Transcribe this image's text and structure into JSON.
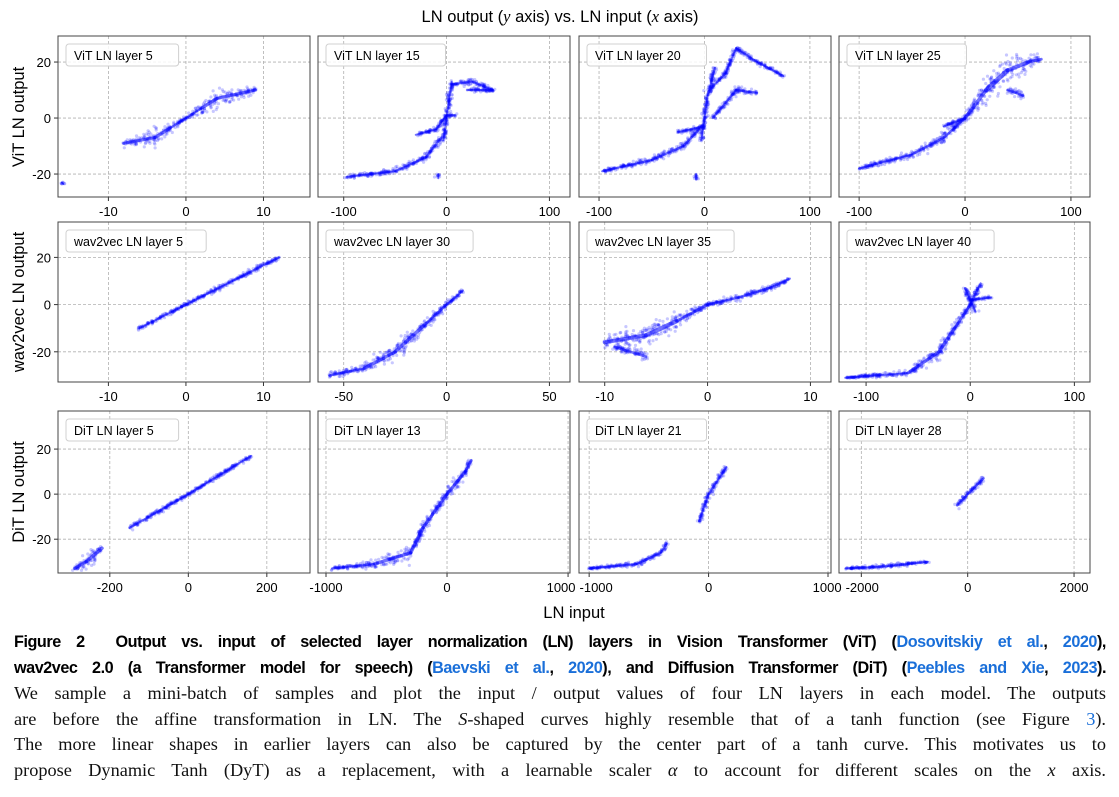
{
  "figure": {
    "title_parts": [
      "LN output (",
      "y",
      " axis) vs. LN input (",
      "x",
      " axis)"
    ],
    "xlabel": "LN input",
    "row_ylabels": [
      "ViT LN output",
      "wav2vec LN output",
      "DiT LN output"
    ]
  },
  "colors": {
    "points": "#0000ff",
    "grid": "#b0b0b0",
    "link": "#1a6fd9"
  },
  "chart_data": {
    "type": "scatter",
    "grid": true,
    "legend_placement": "top-left",
    "panels": [
      {
        "label": "ViT LN layer 5",
        "row": 0,
        "col": 0,
        "xlim": [
          -16.5,
          16
        ],
        "ylim": [
          -28.2,
          29.3
        ],
        "xticks": [
          -10,
          0,
          10
        ],
        "yticks": [
          -20,
          0,
          20
        ],
        "strokes": [
          [
            [
              -8,
              -9,
              1
            ],
            [
              -4,
              -7,
              3
            ],
            [
              -2,
              -3.5,
              1.5
            ],
            [
              0,
              0,
              0.2
            ],
            [
              2,
              3.5,
              1.5
            ],
            [
              4,
              7,
              3
            ],
            [
              9,
              10,
              1
            ]
          ],
          [
            [
              -16,
              -23,
              0.4
            ],
            [
              -15.8,
              -23.6,
              0.4
            ]
          ]
        ]
      },
      {
        "label": "ViT LN layer 15",
        "row": 0,
        "col": 1,
        "xlim": [
          -125,
          120
        ],
        "ylim": [
          -28.2,
          29.3
        ],
        "xticks": [
          -100,
          0,
          100
        ],
        "yticks": [
          -20,
          0,
          20
        ],
        "strokes": [
          [
            [
              -97,
              -21,
              0.5
            ],
            [
              -50,
              -19,
              0.8
            ],
            [
              -20,
              -14,
              1
            ],
            [
              -5,
              -7,
              1
            ]
          ],
          [
            [
              -3,
              -8,
              0.5
            ],
            [
              0,
              0,
              0.5
            ],
            [
              5,
              13,
              0.5
            ]
          ],
          [
            [
              -30,
              -6,
              0.5
            ],
            [
              -10,
              -4,
              0.5
            ],
            [
              0,
              1,
              0.5
            ],
            [
              8,
              1,
              0.5
            ]
          ],
          [
            [
              5,
              12,
              0.5
            ],
            [
              25,
              13,
              1
            ],
            [
              45,
              10,
              0.5
            ],
            [
              20,
              10,
              0.7
            ]
          ],
          [
            [
              -8,
              -20,
              0.5
            ],
            [
              -8,
              -21.5,
              0.5
            ]
          ]
        ]
      },
      {
        "label": "ViT LN layer 20",
        "row": 0,
        "col": 2,
        "xlim": [
          -119,
          120
        ],
        "ylim": [
          -28.2,
          29.3
        ],
        "xticks": [
          -100,
          0,
          100
        ],
        "yticks": [
          -20,
          0,
          20
        ],
        "strokes": [
          [
            [
              -97,
              -19,
              0.5
            ],
            [
              -50,
              -15,
              1
            ],
            [
              -20,
              -10,
              1
            ],
            [
              -5,
              -4,
              1
            ]
          ],
          [
            [
              -3,
              -8,
              0.5
            ],
            [
              3,
              8,
              0.5
            ],
            [
              10,
              18,
              0.5
            ]
          ],
          [
            [
              -25,
              -5,
              0.5
            ],
            [
              0,
              -3,
              0.5
            ]
          ],
          [
            [
              5,
              10,
              1
            ],
            [
              20,
              16,
              0.5
            ],
            [
              30,
              25,
              0.5
            ],
            [
              50,
              20,
              0.5
            ],
            [
              75,
              15,
              0.5
            ]
          ],
          [
            [
              8,
              0,
              0.5
            ],
            [
              30,
              10,
              1
            ],
            [
              50,
              9,
              0.5
            ]
          ],
          [
            [
              -8,
              -20,
              0.5
            ],
            [
              -8,
              -22,
              0.5
            ]
          ]
        ]
      },
      {
        "label": "ViT LN layer 25",
        "row": 0,
        "col": 3,
        "xlim": [
          -119,
          118
        ],
        "ylim": [
          -28.2,
          29.3
        ],
        "xticks": [
          -100,
          0,
          100
        ],
        "yticks": [
          -20,
          0,
          20
        ],
        "strokes": [
          [
            [
              -100,
              -18,
              0.5
            ],
            [
              -50,
              -13,
              1
            ],
            [
              -20,
              -7,
              1.5
            ],
            [
              0,
              0,
              0.5
            ]
          ],
          [
            [
              -20,
              -3,
              0.5
            ],
            [
              0,
              0,
              1
            ]
          ],
          [
            [
              0,
              0,
              1
            ],
            [
              20,
              10,
              4
            ],
            [
              40,
              17,
              4
            ],
            [
              60,
              20,
              2
            ],
            [
              72,
              21,
              1.5
            ]
          ],
          [
            [
              40,
              10,
              1
            ],
            [
              55,
              8,
              1
            ]
          ]
        ]
      },
      {
        "label": "wav2vec LN layer 5",
        "row": 1,
        "col": 0,
        "xlim": [
          -16.5,
          16
        ],
        "ylim": [
          -32.8,
          35
        ],
        "xticks": [
          -10,
          0,
          10
        ],
        "yticks": [
          -20,
          0,
          20
        ],
        "strokes": [
          [
            [
              -6,
              -10,
              0.5
            ],
            [
              0,
              0,
              0.5
            ],
            [
              6,
              10,
              0.8
            ],
            [
              12,
              20,
              0.6
            ]
          ]
        ]
      },
      {
        "label": "wav2vec LN layer 30",
        "row": 1,
        "col": 1,
        "xlim": [
          -62.5,
          60
        ],
        "ylim": [
          -32.8,
          35
        ],
        "xticks": [
          -50,
          0,
          50
        ],
        "yticks": [
          -20,
          0,
          20
        ],
        "strokes": [
          [
            [
              -57,
              -30,
              0.8
            ],
            [
              -40,
              -27,
              1.5
            ],
            [
              -25,
              -20,
              3
            ],
            [
              -10,
              -8,
              2
            ],
            [
              0,
              0,
              0.5
            ],
            [
              8,
              6,
              0.8
            ]
          ]
        ]
      },
      {
        "label": "wav2vec LN layer 35",
        "row": 1,
        "col": 2,
        "xlim": [
          -12.5,
          12
        ],
        "ylim": [
          -32.8,
          35
        ],
        "xticks": [
          -10,
          0,
          10
        ],
        "yticks": [
          -20,
          0,
          20
        ],
        "strokes": [
          [
            [
              -10,
              -16,
              2
            ],
            [
              -6,
              -13,
              4
            ],
            [
              -3,
              -7,
              3
            ],
            [
              0,
              0,
              0.5
            ],
            [
              3,
              3,
              1.5
            ],
            [
              6,
              7,
              1
            ],
            [
              8,
              11,
              0.5
            ]
          ],
          [
            [
              -9,
              -18,
              1
            ],
            [
              -6,
              -22,
              2
            ]
          ]
        ]
      },
      {
        "label": "wav2vec LN layer 40",
        "row": 1,
        "col": 3,
        "xlim": [
          -126,
          115
        ],
        "ylim": [
          -32.8,
          35
        ],
        "xticks": [
          -100,
          0,
          100
        ],
        "yticks": [
          -20,
          0,
          20
        ],
        "strokes": [
          [
            [
              -120,
              -31,
              0.3
            ],
            [
              -60,
              -29,
              1
            ],
            [
              -30,
              -20,
              3
            ],
            [
              -15,
              -10,
              2
            ],
            [
              0,
              0,
              1
            ],
            [
              10,
              9,
              0.5
            ]
          ],
          [
            [
              -5,
              7,
              0.5
            ],
            [
              5,
              -3,
              0.5
            ]
          ],
          [
            [
              0,
              2,
              0.5
            ],
            [
              20,
              3,
              0.5
            ]
          ]
        ]
      },
      {
        "label": "DiT LN layer 5",
        "row": 2,
        "col": 0,
        "xlim": [
          -332,
          310
        ],
        "ylim": [
          -35,
          36.9
        ],
        "xticks": [
          -200,
          0,
          200
        ],
        "yticks": [
          -20,
          0,
          20
        ],
        "strokes": [
          [
            [
              -290,
              -33,
              1
            ],
            [
              -260,
              -30,
              3
            ],
            [
              -220,
              -24,
              2
            ]
          ],
          [
            [
              -150,
              -15,
              1
            ],
            [
              0,
              0,
              0.5
            ],
            [
              160,
              17,
              0.5
            ]
          ]
        ]
      },
      {
        "label": "DiT LN layer 13",
        "row": 2,
        "col": 1,
        "xlim": [
          -1066,
          1016
        ],
        "ylim": [
          -35,
          36.9
        ],
        "xticks": [
          -1000,
          0,
          1000
        ],
        "yticks": [
          -20,
          0,
          20
        ],
        "strokes": [
          [
            [
              -950,
              -33,
              0.5
            ],
            [
              -600,
              -31,
              1.5
            ],
            [
              -300,
              -26,
              3
            ],
            [
              -200,
              -15,
              2
            ],
            [
              0,
              0,
              2
            ],
            [
              150,
              10,
              2
            ],
            [
              200,
              15,
              1
            ]
          ]
        ]
      },
      {
        "label": "DiT LN layer 21",
        "row": 2,
        "col": 2,
        "xlim": [
          -1085,
          1025
        ],
        "ylim": [
          -35,
          36.9
        ],
        "xticks": [
          -1000,
          0,
          1000
        ],
        "yticks": [
          -20,
          0,
          20
        ],
        "strokes": [
          [
            [
              -1000,
              -33,
              0.3
            ],
            [
              -600,
              -31,
              1
            ],
            [
              -400,
              -26,
              1
            ],
            [
              -350,
              -22,
              0.5
            ]
          ],
          [
            [
              -80,
              -12,
              0.5
            ],
            [
              0,
              0,
              0.8
            ],
            [
              150,
              12,
              0.5
            ]
          ]
        ]
      },
      {
        "label": "DiT LN layer 28",
        "row": 2,
        "col": 3,
        "xlim": [
          -2420,
          2300
        ],
        "ylim": [
          -35,
          36.9
        ],
        "xticks": [
          -2000,
          0,
          2000
        ],
        "yticks": [
          -20,
          0,
          20
        ],
        "strokes": [
          [
            [
              -2300,
              -33,
              0.3
            ],
            [
              -1500,
              -32,
              0.7
            ],
            [
              -750,
              -30,
              0.5
            ]
          ],
          [
            [
              -200,
              -5,
              1
            ],
            [
              0,
              0,
              1
            ],
            [
              300,
              7,
              1
            ]
          ]
        ]
      }
    ]
  },
  "caption": {
    "line1": {
      "label": "Figure 2",
      "text": "Output vs.  input of selected layer normalization (LN) layers in Vision Transformer (ViT) (",
      "cite": "Dosovitskiy et al.",
      "sep": ", ",
      "year": "2020",
      "end": "),"
    },
    "line2": {
      "a": "wav2vec 2.0 (a Transformer model for speech) (",
      "cite1": "Baevski et al.",
      "sep1": ", ",
      "year1": "2020",
      "b": "), and Diffusion Transformer (DiT) (",
      "cite2": "Peebles and Xie",
      "sep2": ", ",
      "year2": "2023",
      "end": ")."
    },
    "line3": "We sample a mini-batch of samples and plot the input / output values of four LN layers in each model. The outputs",
    "line4": {
      "a": "are before the affine transformation in LN. The ",
      "s": "S",
      "b": "-shaped curves highly resemble that of a tanh function (see Figure ",
      "ref": "3",
      "end": ")."
    },
    "line5": "The more linear shapes in earlier layers can also be captured by the center part of a tanh curve. This motivates us to",
    "line6": {
      "a": "propose Dynamic Tanh (DyT) as a replacement, with a learnable scaler ",
      "alpha": "α",
      "b": " to account for different scales on the ",
      "x": "x",
      "end": " axis."
    }
  }
}
